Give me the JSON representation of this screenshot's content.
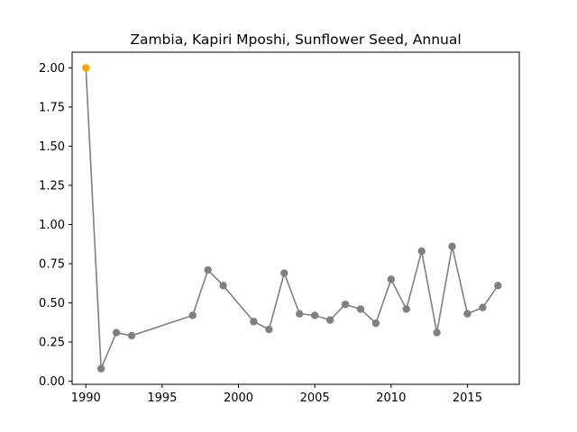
{
  "chart_data": {
    "type": "line",
    "title": "Zambia, Kapiri Mposhi, Sunflower Seed, Annual",
    "xlabel": "",
    "ylabel": "",
    "xlim": [
      1989.1,
      2018.4
    ],
    "ylim": [
      -0.02,
      2.1
    ],
    "grid": false,
    "x_ticks": [
      1990,
      1995,
      2000,
      2005,
      2010,
      2015
    ],
    "y_ticks": [
      0.0,
      0.25,
      0.5,
      0.75,
      1.0,
      1.25,
      1.5,
      1.75,
      2.0
    ],
    "x_tick_labels": [
      "1990",
      "1995",
      "2000",
      "2005",
      "2010",
      "2015"
    ],
    "y_tick_labels": [
      "0.00",
      "0.25",
      "0.50",
      "0.75",
      "1.00",
      "1.25",
      "1.50",
      "1.75",
      "2.00"
    ],
    "line_color": "#808080",
    "highlight_color": "#FFA500",
    "series": [
      {
        "x": [
          1990,
          1991,
          1992,
          1993,
          1997,
          1998,
          1999,
          2001,
          2002,
          2003,
          2004,
          2005,
          2006,
          2007,
          2008,
          2009,
          2010,
          2011,
          2012,
          2013,
          2014,
          2015,
          2016,
          2017
        ],
        "values": [
          2.0,
          0.08,
          0.31,
          0.29,
          0.42,
          0.71,
          0.61,
          0.38,
          0.33,
          0.69,
          0.43,
          0.42,
          0.39,
          0.49,
          0.46,
          0.37,
          0.65,
          0.46,
          0.83,
          0.31,
          0.86,
          0.43,
          0.47,
          0.61
        ],
        "highlight_index": 0
      }
    ]
  }
}
